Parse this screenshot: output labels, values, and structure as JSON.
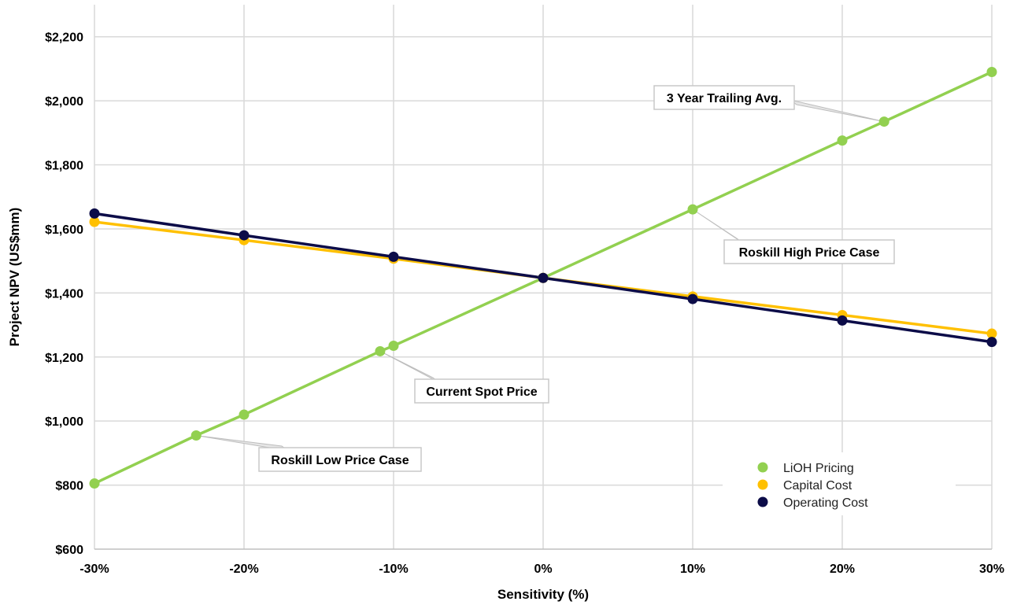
{
  "chart_data": {
    "type": "line",
    "title": "",
    "xlabel": "Sensitivity (%)",
    "ylabel": "Project NPV (US$mm)",
    "xlim": [
      -30,
      30
    ],
    "ylim": [
      600,
      2300
    ],
    "x_ticks": [
      -30,
      -20,
      -10,
      0,
      10,
      20,
      30
    ],
    "x_tick_labels": [
      "-30%",
      "-20%",
      "-10%",
      "0%",
      "10%",
      "20%",
      "30%"
    ],
    "y_ticks": [
      600,
      800,
      1000,
      1200,
      1400,
      1600,
      1800,
      2000,
      2200
    ],
    "y_tick_labels": [
      "$600",
      "$800",
      "$1,000",
      "$1,200",
      "$1,400",
      "$1,600",
      "$1,800",
      "$2,000",
      "$2,200"
    ],
    "grid": true,
    "legend_position": "bottom-right",
    "series": [
      {
        "name": "LiOH Pricing",
        "color": "#92d050",
        "points": [
          [
            -30,
            805
          ],
          [
            -23.2,
            955
          ],
          [
            -20,
            1020
          ],
          [
            -10.9,
            1218
          ],
          [
            -10,
            1235
          ],
          [
            0,
            1447
          ],
          [
            10,
            1661
          ],
          [
            20,
            1876
          ],
          [
            22.8,
            1935
          ],
          [
            30,
            2090
          ]
        ]
      },
      {
        "name": "Capital Cost",
        "color": "#ffc000",
        "points": [
          [
            -30,
            1622
          ],
          [
            -20,
            1565
          ],
          [
            -10,
            1507
          ],
          [
            0,
            1447
          ],
          [
            10,
            1389
          ],
          [
            20,
            1331
          ],
          [
            30,
            1273
          ]
        ]
      },
      {
        "name": "Operating Cost",
        "color": "#0c0c48",
        "points": [
          [
            -30,
            1648
          ],
          [
            -20,
            1580
          ],
          [
            -10,
            1513
          ],
          [
            0,
            1447
          ],
          [
            10,
            1381
          ],
          [
            20,
            1314
          ],
          [
            30,
            1247
          ]
        ]
      }
    ],
    "annotations": [
      {
        "text": "3 Year Trailing Avg.",
        "target": [
          22.8,
          1935
        ]
      },
      {
        "text": "Roskill High Price Case",
        "target": [
          10,
          1661
        ]
      },
      {
        "text": "Current Spot Price",
        "target": [
          -10.9,
          1218
        ]
      },
      {
        "text": "Roskill Low Price Case",
        "target": [
          -23.2,
          955
        ]
      }
    ]
  }
}
